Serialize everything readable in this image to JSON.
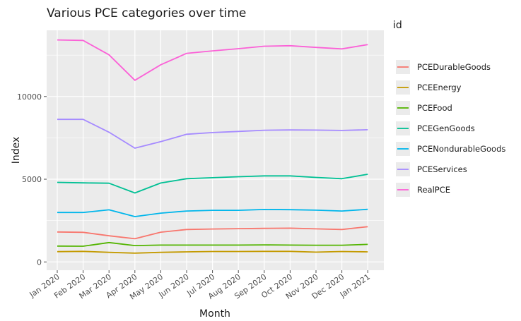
{
  "chart_data": {
    "type": "line",
    "title": "Various PCE categories over time",
    "xlabel": "Month",
    "ylabel": "Index",
    "categories": [
      "Jan 2020",
      "Feb 2020",
      "Mar 2020",
      "Apr 2020",
      "May 2020",
      "Jun 2020",
      "Jul 2020",
      "Aug 2020",
      "Sep 2020",
      "Oct 2020",
      "Nov 2020",
      "Dec 2020",
      "Jan 2021"
    ],
    "yticks": [
      0,
      5000,
      10000
    ],
    "ytick_labels": [
      "0",
      "5000",
      "10000"
    ],
    "ylim": [
      -500,
      14000
    ],
    "grid": true,
    "legend_title": "id",
    "legend_position": "right",
    "series": [
      {
        "name": "PCEDurableGoods",
        "color": "#F8766D",
        "values": [
          1810,
          1790,
          1580,
          1400,
          1800,
          1960,
          1990,
          2010,
          2030,
          2040,
          2000,
          1960,
          2130
        ]
      },
      {
        "name": "PCEEnergy",
        "color": "#C49A00",
        "values": [
          620,
          640,
          580,
          530,
          580,
          610,
          630,
          630,
          640,
          640,
          590,
          630,
          610
        ]
      },
      {
        "name": "PCEFood",
        "color": "#53B400",
        "values": [
          960,
          950,
          1170,
          990,
          1020,
          1020,
          1020,
          1020,
          1030,
          1020,
          1010,
          1010,
          1060
        ]
      },
      {
        "name": "PCEGenGoods",
        "color": "#00C094",
        "values": [
          4810,
          4780,
          4760,
          4170,
          4770,
          5030,
          5090,
          5150,
          5200,
          5200,
          5110,
          5030,
          5300
        ]
      },
      {
        "name": "PCENondurableGoods",
        "color": "#00B6EB",
        "values": [
          2990,
          2990,
          3150,
          2740,
          2950,
          3080,
          3120,
          3120,
          3170,
          3160,
          3130,
          3080,
          3180
        ]
      },
      {
        "name": "PCEServices",
        "color": "#A58AFF",
        "values": [
          8620,
          8620,
          7840,
          6880,
          7270,
          7720,
          7820,
          7890,
          7960,
          7980,
          7970,
          7950,
          7990
        ]
      },
      {
        "name": "RealPCE",
        "color": "#FB61D7",
        "values": [
          13420,
          13390,
          12520,
          10980,
          11920,
          12610,
          12760,
          12890,
          13040,
          13070,
          12970,
          12880,
          13140
        ]
      }
    ]
  }
}
